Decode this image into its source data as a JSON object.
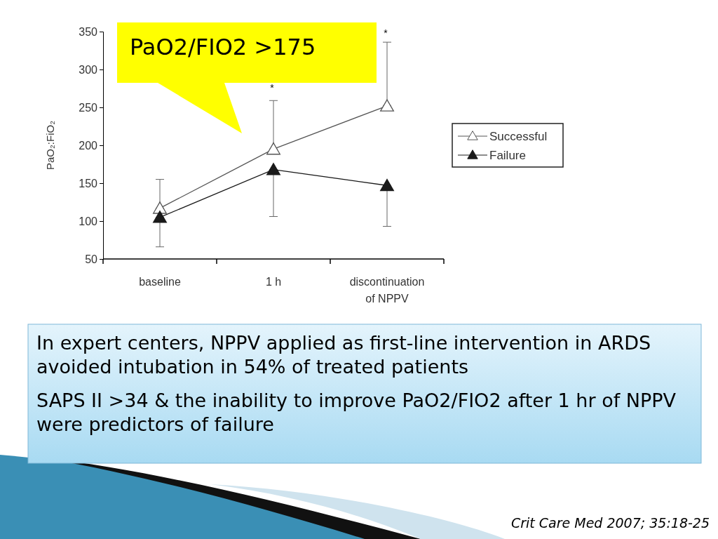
{
  "chart_data": {
    "type": "line",
    "ylabel": "PaO₂:FiO₂",
    "categories": [
      "baseline",
      "1 h",
      "discontinuation of NPPV"
    ],
    "series": [
      {
        "name": "Successful",
        "color": "#555555",
        "values": [
          117,
          195,
          252
        ],
        "errors": [
          [
            117,
            155
          ],
          [
            195,
            259
          ],
          [
            252,
            336
          ]
        ]
      },
      {
        "name": "Failure",
        "color": "#1a1a1a",
        "values": [
          105,
          168,
          147
        ],
        "errors": [
          [
            66,
            105
          ],
          [
            106,
            168
          ],
          [
            93,
            147
          ]
        ]
      }
    ],
    "ylim": [
      50,
      350
    ],
    "yticks": [
      50,
      100,
      150,
      200,
      250,
      300,
      350
    ],
    "grid": false,
    "legend": "right",
    "marker": "triangle",
    "line_style": "solid",
    "annotations": [
      "*",
      "*",
      "PaO2/FIO2 >175",
      "In expert centers, NPPV applied as first-line intervention in ARDS avoided intubation in 54% of treated patients",
      "SAPS II >34 & the inability to improve PaO2/FIO2 after 1 hr of NPPV were predictors of failure",
      "Crit Care Med 2007; 35:18-25"
    ]
  }
}
